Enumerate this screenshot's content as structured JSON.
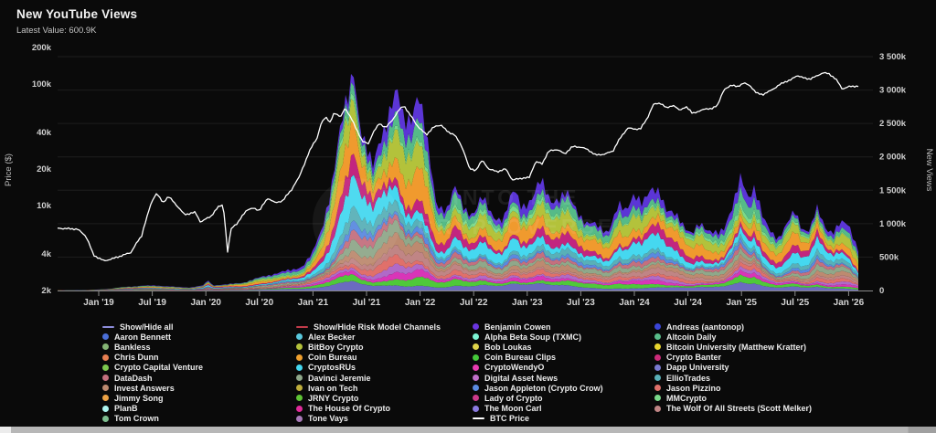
{
  "header": {
    "title": "New YouTube Views",
    "latest_label": "Latest Value:",
    "latest_value": "600.9K"
  },
  "watermark": {
    "line1": "INTO THE",
    "line2": "CRYPTOVERSE"
  },
  "colors": {
    "background": "#0a0a0a",
    "grid": "#1e1e1e",
    "axis": "#8a8a8a",
    "tick_label": "#cfcfcf",
    "btc_line": "#ffffff"
  },
  "chart_data": {
    "type": "area",
    "subtype": "stacked-area with overlaid line",
    "title": "New YouTube Views",
    "x_axis": {
      "tick_labels": [
        "Jan '19",
        "Jul '19",
        "Jan '20",
        "Jul '20",
        "Jan '21",
        "Jul '21",
        "Jan '22",
        "Jul '22",
        "Jan '23",
        "Jul '23",
        "Jan '24",
        "Jul '24",
        "Jan '25",
        "Jul '25",
        "Jan '26"
      ],
      "range_years": [
        2018.62,
        2026.23
      ]
    },
    "left_axis": {
      "title": "Price ($)",
      "scale": "log",
      "tick_labels": [
        "200k",
        "100k",
        "40k",
        "20k",
        "10k",
        "4k",
        "2k"
      ],
      "tick_values_usd": [
        200000,
        100000,
        40000,
        20000,
        10000,
        4000,
        2000
      ]
    },
    "right_axis": {
      "title": "New Views",
      "scale": "linear",
      "tick_labels": [
        "3 500k",
        "3 000k",
        "2 500k",
        "2 000k",
        "1 500k",
        "1 000k",
        "500k",
        "0"
      ],
      "tick_values_k": [
        3500,
        3000,
        2500,
        2000,
        1500,
        1000,
        500,
        0
      ]
    },
    "total_new_views_k": {
      "name": "Total New YouTube Views (stacked, thousands)",
      "points": [
        [
          2018.62,
          3
        ],
        [
          2018.9,
          6
        ],
        [
          2019.1,
          25
        ],
        [
          2019.25,
          55
        ],
        [
          2019.4,
          70
        ],
        [
          2019.55,
          75
        ],
        [
          2019.7,
          55
        ],
        [
          2019.85,
          45
        ],
        [
          2019.98,
          75
        ],
        [
          2020.02,
          160
        ],
        [
          2020.06,
          80
        ],
        [
          2020.2,
          90
        ],
        [
          2020.35,
          120
        ],
        [
          2020.5,
          190
        ],
        [
          2020.65,
          260
        ],
        [
          2020.8,
          300
        ],
        [
          2020.9,
          370
        ],
        [
          2021.0,
          560
        ],
        [
          2021.08,
          900
        ],
        [
          2021.16,
          1500
        ],
        [
          2021.25,
          2300
        ],
        [
          2021.33,
          2900
        ],
        [
          2021.38,
          3440
        ],
        [
          2021.44,
          2500
        ],
        [
          2021.5,
          2050
        ],
        [
          2021.56,
          1800
        ],
        [
          2021.63,
          2350
        ],
        [
          2021.7,
          2650
        ],
        [
          2021.78,
          2900
        ],
        [
          2021.85,
          2500
        ],
        [
          2021.92,
          2700
        ],
        [
          2021.98,
          3000
        ],
        [
          2022.05,
          2300
        ],
        [
          2022.15,
          1350
        ],
        [
          2022.25,
          1200
        ],
        [
          2022.33,
          1500
        ],
        [
          2022.42,
          1250
        ],
        [
          2022.5,
          1150
        ],
        [
          2022.58,
          1350
        ],
        [
          2022.68,
          1150
        ],
        [
          2022.78,
          1050
        ],
        [
          2022.88,
          1500
        ],
        [
          2022.95,
          1300
        ],
        [
          2023.05,
          1350
        ],
        [
          2023.13,
          1620
        ],
        [
          2023.22,
          1400
        ],
        [
          2023.3,
          1350
        ],
        [
          2023.38,
          1400
        ],
        [
          2023.46,
          1250
        ],
        [
          2023.55,
          1000
        ],
        [
          2023.65,
          950
        ],
        [
          2023.75,
          900
        ],
        [
          2023.85,
          1250
        ],
        [
          2023.92,
          1150
        ],
        [
          2024.0,
          1520
        ],
        [
          2024.08,
          1300
        ],
        [
          2024.16,
          1450
        ],
        [
          2024.24,
          1520
        ],
        [
          2024.3,
          1250
        ],
        [
          2024.38,
          1100
        ],
        [
          2024.46,
          950
        ],
        [
          2024.54,
          900
        ],
        [
          2024.6,
          1000
        ],
        [
          2024.68,
          850
        ],
        [
          2024.76,
          900
        ],
        [
          2024.84,
          950
        ],
        [
          2024.92,
          1200
        ],
        [
          2025.0,
          1760
        ],
        [
          2025.06,
          1450
        ],
        [
          2025.12,
          1520
        ],
        [
          2025.2,
          1050
        ],
        [
          2025.28,
          900
        ],
        [
          2025.35,
          800
        ],
        [
          2025.42,
          950
        ],
        [
          2025.5,
          1180
        ],
        [
          2025.57,
          950
        ],
        [
          2025.64,
          900
        ],
        [
          2025.7,
          1200
        ],
        [
          2025.78,
          950
        ],
        [
          2025.85,
          900
        ],
        [
          2025.92,
          1000
        ],
        [
          2026.0,
          950
        ],
        [
          2026.1,
          601
        ]
      ]
    },
    "btc_price_usd": {
      "name": "BTC Price",
      "points": [
        [
          2018.62,
          6500
        ],
        [
          2018.8,
          6400
        ],
        [
          2018.88,
          5600
        ],
        [
          2018.95,
          3900
        ],
        [
          2019.05,
          3500
        ],
        [
          2019.15,
          3700
        ],
        [
          2019.3,
          4100
        ],
        [
          2019.4,
          5600
        ],
        [
          2019.45,
          8000
        ],
        [
          2019.5,
          11000
        ],
        [
          2019.54,
          12600
        ],
        [
          2019.6,
          10500
        ],
        [
          2019.65,
          11900
        ],
        [
          2019.72,
          10200
        ],
        [
          2019.8,
          8400
        ],
        [
          2019.9,
          8800
        ],
        [
          2019.95,
          7300
        ],
        [
          2020.05,
          8200
        ],
        [
          2020.12,
          9800
        ],
        [
          2020.16,
          10200
        ],
        [
          2020.2,
          3900
        ],
        [
          2020.24,
          6600
        ],
        [
          2020.3,
          7200
        ],
        [
          2020.38,
          9200
        ],
        [
          2020.45,
          9500
        ],
        [
          2020.5,
          9100
        ],
        [
          2020.58,
          11500
        ],
        [
          2020.65,
          10500
        ],
        [
          2020.72,
          11000
        ],
        [
          2020.8,
          13500
        ],
        [
          2020.87,
          17000
        ],
        [
          2020.93,
          23000
        ],
        [
          2021.0,
          32000
        ],
        [
          2021.04,
          36000
        ],
        [
          2021.08,
          48000
        ],
        [
          2021.12,
          54000
        ],
        [
          2021.16,
          48000
        ],
        [
          2021.2,
          58000
        ],
        [
          2021.26,
          54000
        ],
        [
          2021.3,
          63000
        ],
        [
          2021.36,
          52000
        ],
        [
          2021.4,
          43000
        ],
        [
          2021.46,
          34000
        ],
        [
          2021.52,
          32000
        ],
        [
          2021.56,
          40000
        ],
        [
          2021.62,
          47000
        ],
        [
          2021.68,
          44000
        ],
        [
          2021.74,
          50000
        ],
        [
          2021.8,
          61000
        ],
        [
          2021.85,
          66000
        ],
        [
          2021.9,
          57000
        ],
        [
          2021.96,
          47000
        ],
        [
          2022.0,
          43000
        ],
        [
          2022.06,
          38000
        ],
        [
          2022.12,
          44000
        ],
        [
          2022.2,
          46000
        ],
        [
          2022.26,
          40000
        ],
        [
          2022.32,
          38500
        ],
        [
          2022.4,
          29000
        ],
        [
          2022.46,
          20000
        ],
        [
          2022.52,
          19500
        ],
        [
          2022.58,
          23500
        ],
        [
          2022.64,
          20000
        ],
        [
          2022.72,
          19000
        ],
        [
          2022.8,
          20000
        ],
        [
          2022.86,
          16200
        ],
        [
          2022.95,
          16800
        ],
        [
          2023.02,
          17000
        ],
        [
          2023.08,
          23000
        ],
        [
          2023.14,
          22000
        ],
        [
          2023.2,
          28000
        ],
        [
          2023.28,
          29000
        ],
        [
          2023.35,
          26500
        ],
        [
          2023.42,
          30500
        ],
        [
          2023.5,
          30300
        ],
        [
          2023.56,
          29000
        ],
        [
          2023.64,
          26000
        ],
        [
          2023.72,
          26500
        ],
        [
          2023.8,
          28000
        ],
        [
          2023.86,
          35000
        ],
        [
          2023.94,
          43500
        ],
        [
          2024.0,
          42500
        ],
        [
          2024.06,
          43000
        ],
        [
          2024.12,
          52000
        ],
        [
          2024.18,
          68000
        ],
        [
          2024.24,
          70000
        ],
        [
          2024.3,
          63500
        ],
        [
          2024.36,
          67000
        ],
        [
          2024.42,
          61000
        ],
        [
          2024.48,
          65000
        ],
        [
          2024.54,
          58000
        ],
        [
          2024.6,
          59000
        ],
        [
          2024.66,
          63000
        ],
        [
          2024.72,
          62000
        ],
        [
          2024.78,
          68000
        ],
        [
          2024.84,
          90000
        ],
        [
          2024.9,
          98000
        ],
        [
          2024.96,
          95000
        ],
        [
          2025.02,
          102000
        ],
        [
          2025.08,
          97000
        ],
        [
          2025.14,
          84000
        ],
        [
          2025.2,
          82000
        ],
        [
          2025.26,
          87000
        ],
        [
          2025.32,
          94000
        ],
        [
          2025.4,
          104000
        ],
        [
          2025.46,
          108000
        ],
        [
          2025.52,
          118000
        ],
        [
          2025.58,
          112000
        ],
        [
          2025.64,
          110000
        ],
        [
          2025.7,
          116000
        ],
        [
          2025.76,
          124000
        ],
        [
          2025.82,
          121000
        ],
        [
          2025.88,
          110000
        ],
        [
          2025.94,
          91000
        ],
        [
          2026.0,
          95000
        ],
        [
          2026.05,
          96000
        ]
      ]
    },
    "stack_bands": [
      {
        "name": "band-slate",
        "color": "#6b6bc0",
        "weight": 0.05
      },
      {
        "name": "band-bright-green",
        "color": "#4fc93a",
        "weight": 0.045
      },
      {
        "name": "band-magenta",
        "color": "#d935b8",
        "weight": 0.03
      },
      {
        "name": "band-orchid",
        "color": "#b06ac8",
        "weight": 0.028
      },
      {
        "name": "band-salmon",
        "color": "#e0706a",
        "weight": 0.035
      },
      {
        "name": "band-rosy",
        "color": "#c08585",
        "weight": 0.038
      },
      {
        "name": "band-tan",
        "color": "#bd8a70",
        "weight": 0.042
      },
      {
        "name": "band-grey-green",
        "color": "#8fa88a",
        "weight": 0.048
      },
      {
        "name": "band-dusty-rose",
        "color": "#c4707e",
        "weight": 0.035
      },
      {
        "name": "band-cornflower",
        "color": "#5a8ae0",
        "weight": 0.03
      },
      {
        "name": "band-teal",
        "color": "#59b0b8",
        "weight": 0.045
      },
      {
        "name": "band-cyan",
        "color": "#45d8f0",
        "weight": 0.1
      },
      {
        "name": "band-crimson",
        "color": "#c2257f",
        "weight": 0.075
      },
      {
        "name": "band-orange",
        "color": "#f09a2e",
        "weight": 0.13
      },
      {
        "name": "band-yellow-green",
        "color": "#b3c23b",
        "weight": 0.11
      },
      {
        "name": "band-mint",
        "color": "#7ad98a",
        "weight": 0.035
      },
      {
        "name": "band-teal-green",
        "color": "#55bb88",
        "weight": 0.085
      },
      {
        "name": "band-indigo",
        "color": "#5b35d6",
        "weight": 0.08
      }
    ]
  },
  "legend": {
    "columns": [
      {
        "items": [
          {
            "label": "Show/Hide all",
            "color": "#8d8ddb",
            "marker": "line"
          },
          {
            "label": "Aaron Bennett",
            "color": "#4a6fd8",
            "marker": "dot"
          },
          {
            "label": "Bankless",
            "color": "#85b575",
            "marker": "dot"
          },
          {
            "label": "Chris Dunn",
            "color": "#e87f52",
            "marker": "dot"
          },
          {
            "label": "Crypto Capital Venture",
            "color": "#7ec94f",
            "marker": "dot"
          },
          {
            "label": "DataDash",
            "color": "#c4707e",
            "marker": "dot"
          },
          {
            "label": "Invest Answers",
            "color": "#bd8a70",
            "marker": "dot"
          },
          {
            "label": "Jimmy Song",
            "color": "#eda245",
            "marker": "dot"
          },
          {
            "label": "PlanB",
            "color": "#aef5f0",
            "marker": "dot"
          },
          {
            "label": "Tom Crown",
            "color": "#7dbd8f",
            "marker": "dot"
          }
        ]
      },
      {
        "items": [
          {
            "label": "Show/Hide Risk Model Channels",
            "color": "#c23b4a",
            "marker": "line"
          },
          {
            "label": "Alex Becker",
            "color": "#59c8dd",
            "marker": "dot"
          },
          {
            "label": "BitBoy Crypto",
            "color": "#b5c23b",
            "marker": "dot"
          },
          {
            "label": "Coin Bureau",
            "color": "#f0a02e",
            "marker": "dot"
          },
          {
            "label": "CryptosRUs",
            "color": "#45d8f0",
            "marker": "dot"
          },
          {
            "label": "Davinci Jeremie",
            "color": "#8fa88a",
            "marker": "dot"
          },
          {
            "label": "Ivan on Tech",
            "color": "#bfae3b",
            "marker": "dot"
          },
          {
            "label": "JRNY Crypto",
            "color": "#5fc435",
            "marker": "dot"
          },
          {
            "label": "The House Of Crypto",
            "color": "#e02b9a",
            "marker": "dot"
          },
          {
            "label": "Tone Vays",
            "color": "#a87ab8",
            "marker": "dot"
          }
        ]
      },
      {
        "items": [
          {
            "label": "Benjamin Cowen",
            "color": "#6a35e0",
            "marker": "dot"
          },
          {
            "label": "Alpha Beta Soup (TXMC)",
            "color": "#7df5d5",
            "marker": "dot"
          },
          {
            "label": "Bob Loukas",
            "color": "#e0d54a",
            "marker": "dot"
          },
          {
            "label": "Coin Bureau Clips",
            "color": "#45c93a",
            "marker": "dot"
          },
          {
            "label": "CryptoWendyO",
            "color": "#e83bb0",
            "marker": "dot"
          },
          {
            "label": "Digital Asset News",
            "color": "#c070c8",
            "marker": "dot"
          },
          {
            "label": "Jason Appleton (Crypto Crow)",
            "color": "#5a8ae0",
            "marker": "dot"
          },
          {
            "label": "Lady of Crypto",
            "color": "#cc3a8a",
            "marker": "dot"
          },
          {
            "label": "The Moon Carl",
            "color": "#8a7ae0",
            "marker": "dot"
          },
          {
            "label": "BTC Price",
            "color": "#ffffff",
            "marker": "line"
          }
        ]
      },
      {
        "items": [
          {
            "label": "Andreas (aantonop)",
            "color": "#3a45d8",
            "marker": "dot"
          },
          {
            "label": "Altcoin Daily",
            "color": "#59bd8a",
            "marker": "dot"
          },
          {
            "label": "Bitcoin University (Matthew Kratter)",
            "color": "#e8d52e",
            "marker": "dot"
          },
          {
            "label": "Crypto Banter",
            "color": "#cc2b7a",
            "marker": "dot"
          },
          {
            "label": "Dapp University",
            "color": "#7a7ad0",
            "marker": "dot"
          },
          {
            "label": "EllioTrades",
            "color": "#59b0b8",
            "marker": "dot"
          },
          {
            "label": "Jason Pizzino",
            "color": "#e0706a",
            "marker": "dot"
          },
          {
            "label": "MMCrypto",
            "color": "#7ad98a",
            "marker": "dot"
          },
          {
            "label": "The Wolf Of All Streets (Scott Melker)",
            "color": "#c08585",
            "marker": "dot"
          }
        ]
      }
    ]
  }
}
